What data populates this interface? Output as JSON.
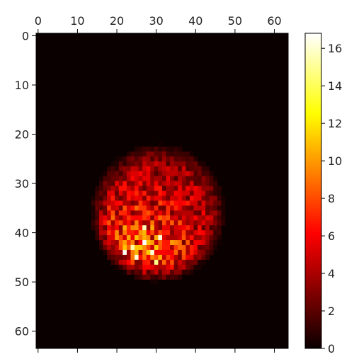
{
  "chart_data": {
    "type": "heatmap",
    "title": "",
    "xlabel": "",
    "ylabel": "",
    "grid_shape": [
      64,
      64
    ],
    "xlim": [
      -0.5,
      63.5
    ],
    "ylim": [
      63.5,
      -0.5
    ],
    "x_axis_position": "top",
    "x_ticks": [
      0,
      10,
      20,
      30,
      40,
      50,
      60
    ],
    "y_ticks": [
      0,
      10,
      20,
      30,
      40,
      50,
      60
    ],
    "colormap": "hot",
    "colormap_stops": [
      "#0a0000",
      "#ff0000",
      "#ffff00",
      "#ffffff"
    ],
    "value_range": [
      0,
      16.8
    ],
    "colorbar": {
      "ticks": [
        0,
        2,
        4,
        6,
        8,
        10,
        12,
        14,
        16
      ],
      "placement": "right"
    },
    "blob": {
      "center": [
        30.5,
        36
      ],
      "radius_x": 16.5,
      "radius_y": 13.5,
      "peak_value": 16.8,
      "peak_location": [
        26,
        43
      ],
      "peak_cluster_cells": [
        [
          24,
          43
        ],
        [
          25,
          45
        ],
        [
          27,
          42
        ],
        [
          29,
          44
        ],
        [
          31,
          41
        ],
        [
          22,
          44
        ],
        [
          30,
          46
        ],
        [
          27,
          39
        ]
      ]
    }
  }
}
